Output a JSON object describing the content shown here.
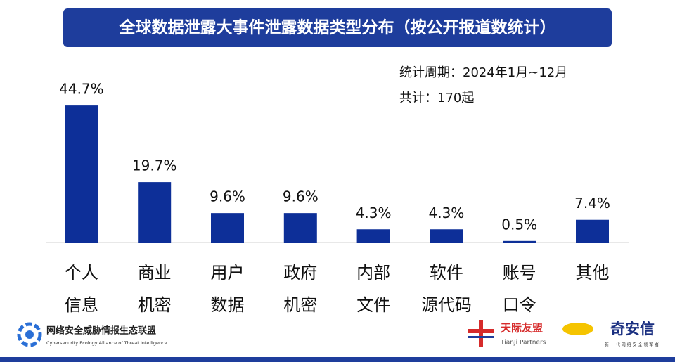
{
  "chart_data": {
    "type": "bar",
    "title": "全球数据泄露大事件泄露数据类型分布（按公开报道数统计）",
    "period": "统计周期：2024年1月~12月",
    "total": "共计：170起",
    "categories": [
      [
        "个人",
        "信息"
      ],
      [
        "商业",
        "机密"
      ],
      [
        "用户",
        "数据"
      ],
      [
        "政府",
        "机密"
      ],
      [
        "内部",
        "文件"
      ],
      [
        "软件",
        "源代码"
      ],
      [
        "账号",
        "口令"
      ],
      [
        "其他"
      ]
    ],
    "values": [
      44.7,
      19.7,
      9.6,
      9.6,
      4.3,
      4.3,
      0.5,
      7.4
    ],
    "value_labels": [
      "44.7%",
      "19.7%",
      "9.6%",
      "9.6%",
      "4.3%",
      "4.3%",
      "0.5%",
      "7.4%"
    ],
    "color": "#0d2f98"
  },
  "footer": {
    "alliance": "网络安全威胁情报生态联盟",
    "alliance_en": "Cybersecurity Ecology Alliance of Threat Intelligence",
    "tianji": "天际友盟",
    "tianji_en": "TianJi Partners",
    "qianxin": "奇安信",
    "qianxin_slogan": "新 一 代 网 络 安 全 领 军 者"
  }
}
